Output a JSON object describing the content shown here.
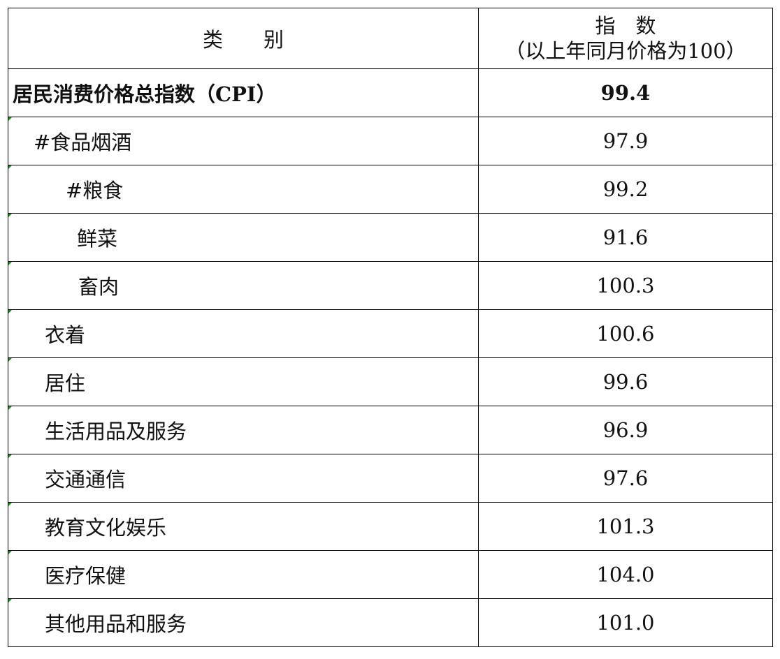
{
  "header": {
    "category_label": "类　　别",
    "index_label": "指　数",
    "index_sublabel": "（以上年同月价格为100）"
  },
  "rows": [
    {
      "category": "居民消费价格总指数（CPI）",
      "value": "99.4"
    },
    {
      "category": "#食品烟酒",
      "value": "97.9"
    },
    {
      "category": "#粮食",
      "value": "99.2"
    },
    {
      "category": "鲜菜",
      "value": "91.6"
    },
    {
      "category": "畜肉",
      "value": "100.3"
    },
    {
      "category": "衣着",
      "value": "100.6"
    },
    {
      "category": "居住",
      "value": "99.6"
    },
    {
      "category": "生活用品及服务",
      "value": "96.9"
    },
    {
      "category": "交通通信",
      "value": "97.6"
    },
    {
      "category": "教育文化娱乐",
      "value": "101.3"
    },
    {
      "category": "医疗保健",
      "value": "104.0"
    },
    {
      "category": "其他用品和服务",
      "value": "101.0"
    }
  ],
  "colors": {
    "cell_marker": "#1e8a1e",
    "border": "#000000"
  }
}
